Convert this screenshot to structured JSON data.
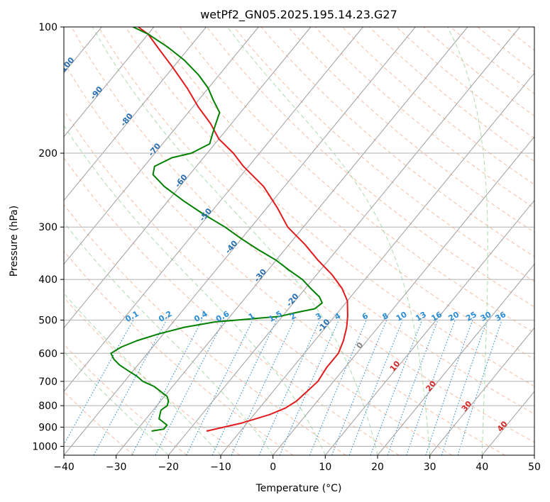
{
  "chart_data": {
    "type": "skew-t",
    "title": "wetPf2_GN05.2025.195.14.23.G27",
    "xlabel": "Temperature (°C)",
    "ylabel": "Pressure (hPa)",
    "xlim": [
      -40,
      50
    ],
    "ylim": [
      1050,
      100
    ],
    "y_scale": "log",
    "grid": true,
    "x_ticks": [
      -40,
      -30,
      -20,
      -10,
      0,
      10,
      20,
      30,
      40,
      50
    ],
    "x_tick_labels": [
      "−40",
      "−30",
      "−20",
      "−10",
      "0",
      "10",
      "20",
      "30",
      "40",
      "50"
    ],
    "y_ticks": [
      1000,
      900,
      800,
      700,
      600,
      500,
      400,
      300,
      200,
      100
    ],
    "y_tick_labels": [
      "1000",
      "900",
      "800",
      "700",
      "600",
      "500",
      "400",
      "300",
      "200",
      "100"
    ],
    "isotherm_labels": [
      {
        "text": "-100",
        "t": -100,
        "p": 125
      },
      {
        "text": "-90",
        "t": -90,
        "p": 145
      },
      {
        "text": "-80",
        "t": -80,
        "p": 168
      },
      {
        "text": "-70",
        "t": -70,
        "p": 198
      },
      {
        "text": "-60",
        "t": -60,
        "p": 235
      },
      {
        "text": "-50",
        "t": -50,
        "p": 283
      },
      {
        "text": "-40",
        "t": -40,
        "p": 338
      },
      {
        "text": "-30",
        "t": -30,
        "p": 395
      },
      {
        "text": "-20",
        "t": -20,
        "p": 452
      },
      {
        "text": "-10",
        "t": -10,
        "p": 520
      },
      {
        "text": "0",
        "t": 0,
        "p": 580
      },
      {
        "text": "10",
        "t": 10,
        "p": 650
      },
      {
        "text": "20",
        "t": 20,
        "p": 725
      },
      {
        "text": "30",
        "t": 30,
        "p": 810
      },
      {
        "text": "40",
        "t": 40,
        "p": 905
      }
    ],
    "mixing_ratio_labels": [
      "0.1",
      "0.2",
      "0.4",
      "0.6",
      "1",
      "1.5",
      "2",
      "3",
      "4",
      "6",
      "8",
      "10",
      "13",
      "16",
      "20",
      "25",
      "30",
      "36"
    ],
    "series": [
      {
        "color": "#e31a1c",
        "pressure": [
          920,
          880,
          840,
          810,
          780,
          740,
          700,
          650,
          600,
          560,
          520,
          490,
          450,
          420,
          390,
          360,
          330,
          300,
          270,
          240,
          215,
          200,
          185,
          170,
          155,
          140,
          125,
          112,
          104,
          100
        ],
        "temperature": [
          -16.5,
          -11,
          -7,
          -5,
          -4,
          -3.5,
          -3,
          -3.5,
          -3.5,
          -4.5,
          -6,
          -7.5,
          -10,
          -13,
          -17,
          -22,
          -27,
          -33,
          -38,
          -44,
          -51,
          -55,
          -60,
          -64,
          -69,
          -74,
          -80,
          -86,
          -90,
          -93
        ]
      },
      {
        "color": "#008000",
        "pressure": [
          920,
          910,
          890,
          860,
          840,
          820,
          800,
          780,
          760,
          740,
          720,
          700,
          680,
          660,
          640,
          620,
          600,
          580,
          560,
          540,
          520,
          505,
          500,
          490,
          480,
          470,
          455,
          440,
          420,
          400,
          380,
          360,
          340,
          320,
          300,
          280,
          260,
          240,
          225,
          215,
          205,
          200,
          190,
          180,
          170,
          160,
          150,
          140,
          130,
          120,
          112,
          104,
          100
        ],
        "temperature": [
          -27,
          -25,
          -25,
          -27.5,
          -28,
          -28.5,
          -28,
          -28.5,
          -29.5,
          -31.5,
          -33.5,
          -36.5,
          -38.5,
          -41,
          -43.5,
          -45.5,
          -47,
          -46,
          -44,
          -41,
          -37,
          -32,
          -28,
          -20.5,
          -18,
          -15,
          -14.5,
          -16,
          -19,
          -22,
          -26,
          -30,
          -35,
          -40,
          -45,
          -51,
          -57,
          -63,
          -67,
          -68,
          -66,
          -63,
          -61,
          -62,
          -63,
          -64,
          -67,
          -70,
          -74,
          -79,
          -84,
          -90,
          -94
        ]
      }
    ]
  }
}
